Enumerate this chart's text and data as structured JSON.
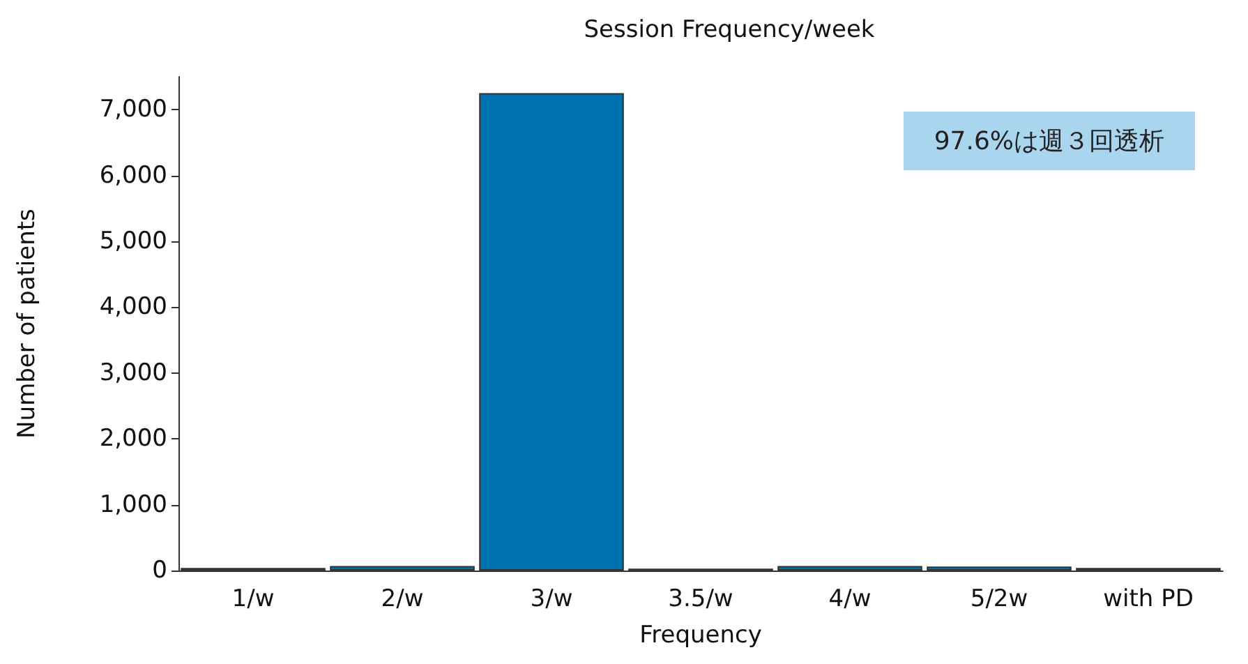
{
  "chart_data": {
    "type": "bar",
    "title": "Session Frequency/week",
    "xlabel": "Frequency",
    "ylabel": "Number of patients",
    "categories": [
      "1/w",
      "2/w",
      "3/w",
      "3.5/w",
      "4/w",
      "5/2w",
      "with PD"
    ],
    "values": [
      40,
      70,
      7250,
      30,
      70,
      60,
      40
    ],
    "color": "#0071b0",
    "ylim": [
      0,
      7500
    ],
    "yticks": [
      {
        "value": 0,
        "label": "0"
      },
      {
        "value": 1000,
        "label": "1,000"
      },
      {
        "value": 2000,
        "label": "2,000"
      },
      {
        "value": 3000,
        "label": "3,000"
      },
      {
        "value": 4000,
        "label": "4,000"
      },
      {
        "value": 5000,
        "label": "5,000"
      },
      {
        "value": 6000,
        "label": "6,000"
      },
      {
        "value": 7000,
        "label": "7,000"
      }
    ],
    "grid": false,
    "annotations": [
      "97.6%は週３回透析"
    ]
  }
}
